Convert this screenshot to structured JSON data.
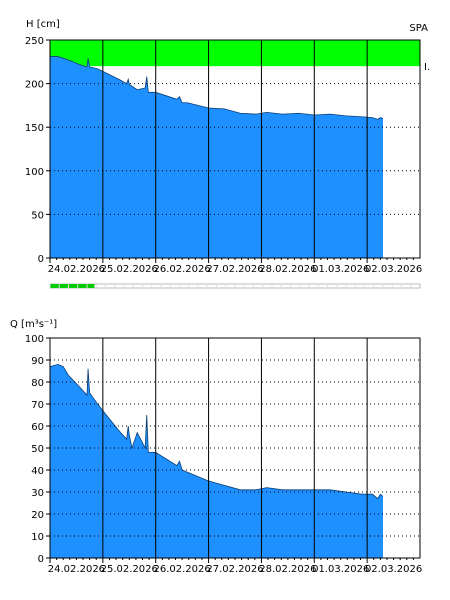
{
  "chart_data": [
    {
      "type": "area",
      "ylabel": "H [cm]",
      "station": "SPA",
      "band_label": "I.",
      "ylim": [
        0,
        250
      ],
      "yticks": [
        0,
        50,
        100,
        150,
        200,
        250
      ],
      "xlim": [
        0,
        7
      ],
      "dates": [
        "24.02.2026",
        "25.02.2026",
        "26.02.2026",
        "27.02.2026",
        "28.02.2026",
        "01.03.2026",
        "02.03.2026"
      ],
      "grid": true,
      "band": {
        "from": 220,
        "to": 250,
        "color": "#00ff00"
      },
      "fill_color": "#1e90ff",
      "x": [
        0,
        0.15,
        0.35,
        0.55,
        0.7,
        0.72,
        0.75,
        0.9,
        1.1,
        1.3,
        1.45,
        1.48,
        1.5,
        1.65,
        1.8,
        1.83,
        1.86,
        2.0,
        2.2,
        2.4,
        2.45,
        2.5,
        2.6,
        2.8,
        3.0,
        3.3,
        3.6,
        3.9,
        4.1,
        4.4,
        4.7,
        5.0,
        5.3,
        5.6,
        5.9,
        6.1,
        6.2,
        6.25,
        6.3
      ],
      "values": [
        231,
        231,
        227,
        222,
        219,
        229,
        219,
        217,
        211,
        205,
        200,
        205,
        199,
        193,
        195,
        208,
        190,
        190,
        186,
        182,
        185,
        178,
        178,
        175,
        172,
        171,
        166,
        165,
        167,
        165,
        166,
        164,
        165,
        163,
        162,
        161,
        159,
        161,
        160
      ],
      "slider": {
        "position": 0.12
      }
    },
    {
      "type": "area",
      "ylabel": "Q [m³s⁻¹]",
      "ylim": [
        0,
        100
      ],
      "yticks": [
        0,
        10,
        20,
        30,
        40,
        50,
        60,
        70,
        80,
        90,
        100
      ],
      "xlim": [
        0,
        7
      ],
      "dates": [
        "24.02.2026",
        "25.02.2026",
        "26.02.2026",
        "27.02.2026",
        "28.02.2026",
        "01.03.2026",
        "02.03.2026"
      ],
      "grid": true,
      "fill_color": "#1e90ff",
      "x": [
        0,
        0.15,
        0.25,
        0.35,
        0.55,
        0.7,
        0.72,
        0.75,
        0.9,
        1.1,
        1.3,
        1.45,
        1.48,
        1.5,
        1.55,
        1.65,
        1.8,
        1.83,
        1.86,
        2.0,
        2.2,
        2.4,
        2.45,
        2.5,
        2.6,
        2.8,
        3.0,
        3.3,
        3.6,
        3.9,
        4.1,
        4.4,
        4.7,
        5.0,
        5.3,
        5.6,
        5.9,
        6.1,
        6.2,
        6.25,
        6.3
      ],
      "values": [
        87,
        88,
        87,
        83,
        78,
        74,
        86,
        75,
        70,
        64,
        58,
        54,
        60,
        56,
        50,
        57,
        50,
        65,
        48,
        48,
        45,
        42,
        44,
        40,
        39,
        37,
        35,
        33,
        31,
        31,
        32,
        31,
        31,
        31,
        31,
        30,
        29,
        29,
        27,
        29,
        28
      ]
    }
  ]
}
